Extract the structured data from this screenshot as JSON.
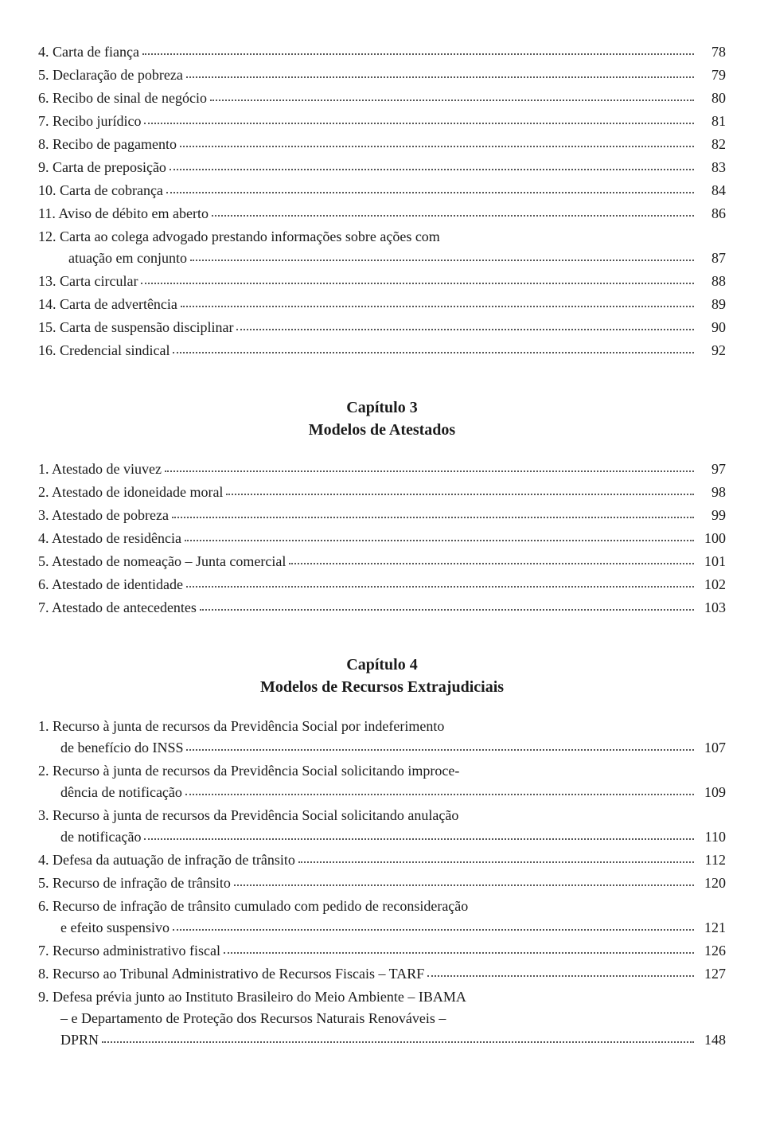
{
  "sectionA": [
    {
      "label": "4. Carta de fiança",
      "page": "78"
    },
    {
      "label": "5. Declaração de pobreza",
      "page": "79"
    },
    {
      "label": "6. Recibo de sinal de negócio",
      "page": "80"
    },
    {
      "label": "7. Recibo jurídico",
      "page": "81"
    },
    {
      "label": "8. Recibo de pagamento",
      "page": "82"
    },
    {
      "label": "9. Carta de preposição",
      "page": "83"
    },
    {
      "label": "10. Carta de cobrança",
      "page": "84"
    },
    {
      "label": "11. Aviso de débito em aberto",
      "page": "86"
    },
    {
      "label_line1": "12. Carta ao colega advogado prestando informações sobre ações com",
      "label_line2": "atuação em conjunto",
      "page": "87",
      "multiline": true
    },
    {
      "label": "13. Carta circular",
      "page": "88"
    },
    {
      "label": "14. Carta de advertência",
      "page": "89"
    },
    {
      "label": "15. Carta de suspensão disciplinar",
      "page": "90"
    },
    {
      "label": "16. Credencial sindical",
      "page": "92"
    }
  ],
  "chapter3": {
    "title_l1": "Capítulo 3",
    "title_l2": "Modelos de Atestados",
    "items": [
      {
        "label": "1. Atestado de viuvez",
        "page": "97"
      },
      {
        "label": "2. Atestado de idoneidade moral",
        "page": "98"
      },
      {
        "label": "3. Atestado de pobreza",
        "page": "99"
      },
      {
        "label": "4. Atestado de residência",
        "page": "100"
      },
      {
        "label": "5. Atestado de nomeação – Junta comercial",
        "page": "101"
      },
      {
        "label": "6. Atestado de identidade",
        "page": "102"
      },
      {
        "label": "7. Atestado de antecedentes",
        "page": "103"
      }
    ]
  },
  "chapter4": {
    "title_l1": "Capítulo 4",
    "title_l2": "Modelos de Recursos Extrajudiciais",
    "items": [
      {
        "label_line1": "1. Recurso à junta de recursos da Previdência Social por indeferimento",
        "label_line2": "de benefício do INSS",
        "page": "107",
        "multiline": true,
        "indent": 28
      },
      {
        "label_line1": "2. Recurso à junta de recursos da Previdência Social solicitando improce-",
        "label_line2": "dência de notificação",
        "page": "109",
        "multiline": true,
        "indent": 28
      },
      {
        "label_line1": "3. Recurso à junta de recursos da Previdência Social solicitando anulação",
        "label_line2": "de notificação",
        "page": "110",
        "multiline": true,
        "indent": 28
      },
      {
        "label": "4. Defesa da autuação de infração de trânsito",
        "page": "112"
      },
      {
        "label": "5. Recurso de infração de trânsito",
        "page": "120"
      },
      {
        "label_line1": "6. Recurso de infração de trânsito cumulado com pedido de reconsideração",
        "label_line2": "e efeito suspensivo",
        "page": "121",
        "multiline": true,
        "indent": 28
      },
      {
        "label": "7. Recurso administrativo fiscal",
        "page": "126"
      },
      {
        "label": "8. Recurso ao Tribunal Administrativo de Recursos Fiscais – TARF",
        "page": "127"
      },
      {
        "label_line1": "9. Defesa prévia junto ao Instituto Brasileiro do Meio Ambiente – IBAMA",
        "label_line2": "– e Departamento de Proteção dos Recursos Naturais Renováveis –",
        "label_line3": "DPRN",
        "page": "148",
        "multiline3": true,
        "indent": 28
      }
    ]
  }
}
